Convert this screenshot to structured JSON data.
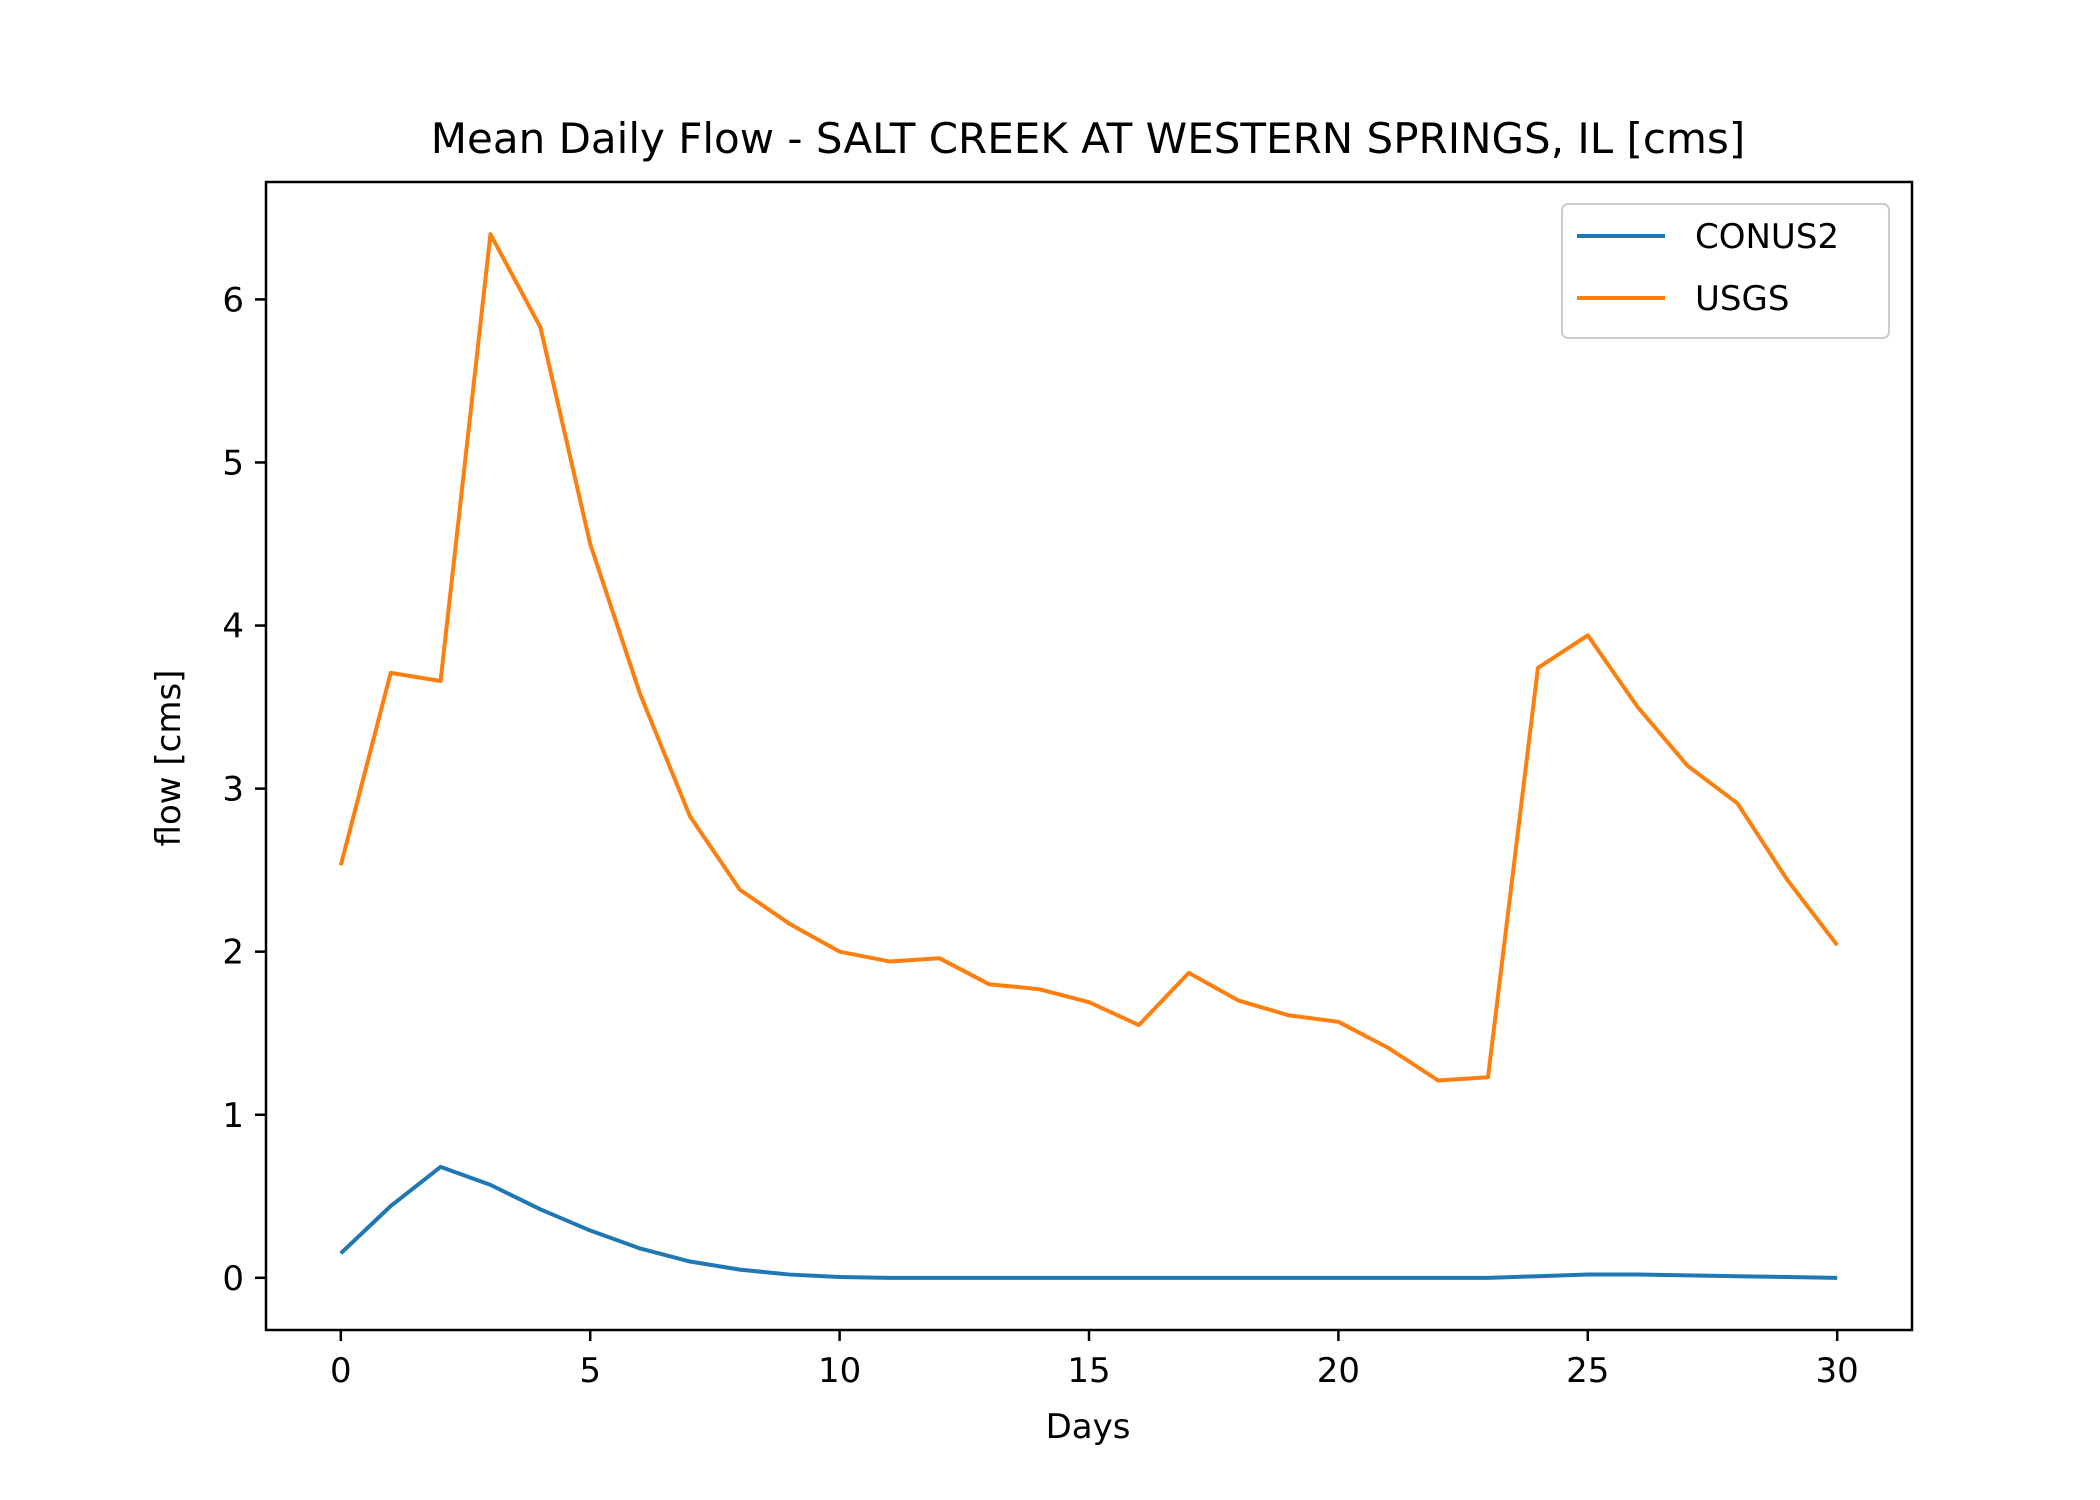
{
  "chart_data": {
    "type": "line",
    "title": "Mean Daily Flow - SALT CREEK AT WESTERN SPRINGS, IL [cms]",
    "xlabel": "Days",
    "ylabel": "flow [cms]",
    "xlim": [
      -1.5,
      31.5
    ],
    "ylim": [
      -0.32,
      6.72
    ],
    "xticks": [
      0,
      5,
      10,
      15,
      20,
      25,
      30
    ],
    "yticks": [
      0,
      1,
      2,
      3,
      4,
      5,
      6
    ],
    "grid": false,
    "legend_position": "top-right",
    "x": [
      0,
      1,
      2,
      3,
      4,
      5,
      6,
      7,
      8,
      9,
      10,
      11,
      12,
      13,
      14,
      15,
      16,
      17,
      18,
      19,
      20,
      21,
      22,
      23,
      24,
      25,
      26,
      27,
      28,
      29,
      30
    ],
    "series": [
      {
        "name": "CONUS2",
        "color": "#1f77b4",
        "values": [
          0.15,
          0.44,
          0.68,
          0.57,
          0.42,
          0.29,
          0.18,
          0.1,
          0.05,
          0.02,
          0.005,
          0.0,
          0.0,
          0.0,
          0.0,
          0.0,
          0.0,
          0.0,
          0.0,
          0.0,
          0.0,
          0.0,
          0.0,
          0.0,
          0.01,
          0.02,
          0.02,
          0.015,
          0.01,
          0.005,
          0.0
        ]
      },
      {
        "name": "USGS",
        "color": "#ff7f0e",
        "values": [
          2.53,
          3.71,
          3.66,
          6.4,
          5.83,
          4.5,
          3.58,
          2.83,
          2.38,
          2.17,
          2.0,
          1.94,
          1.96,
          1.8,
          1.77,
          1.69,
          1.55,
          1.87,
          1.7,
          1.61,
          1.57,
          1.41,
          1.21,
          1.23,
          3.74,
          3.94,
          3.5,
          3.14,
          2.91,
          2.44,
          2.04
        ]
      }
    ]
  }
}
